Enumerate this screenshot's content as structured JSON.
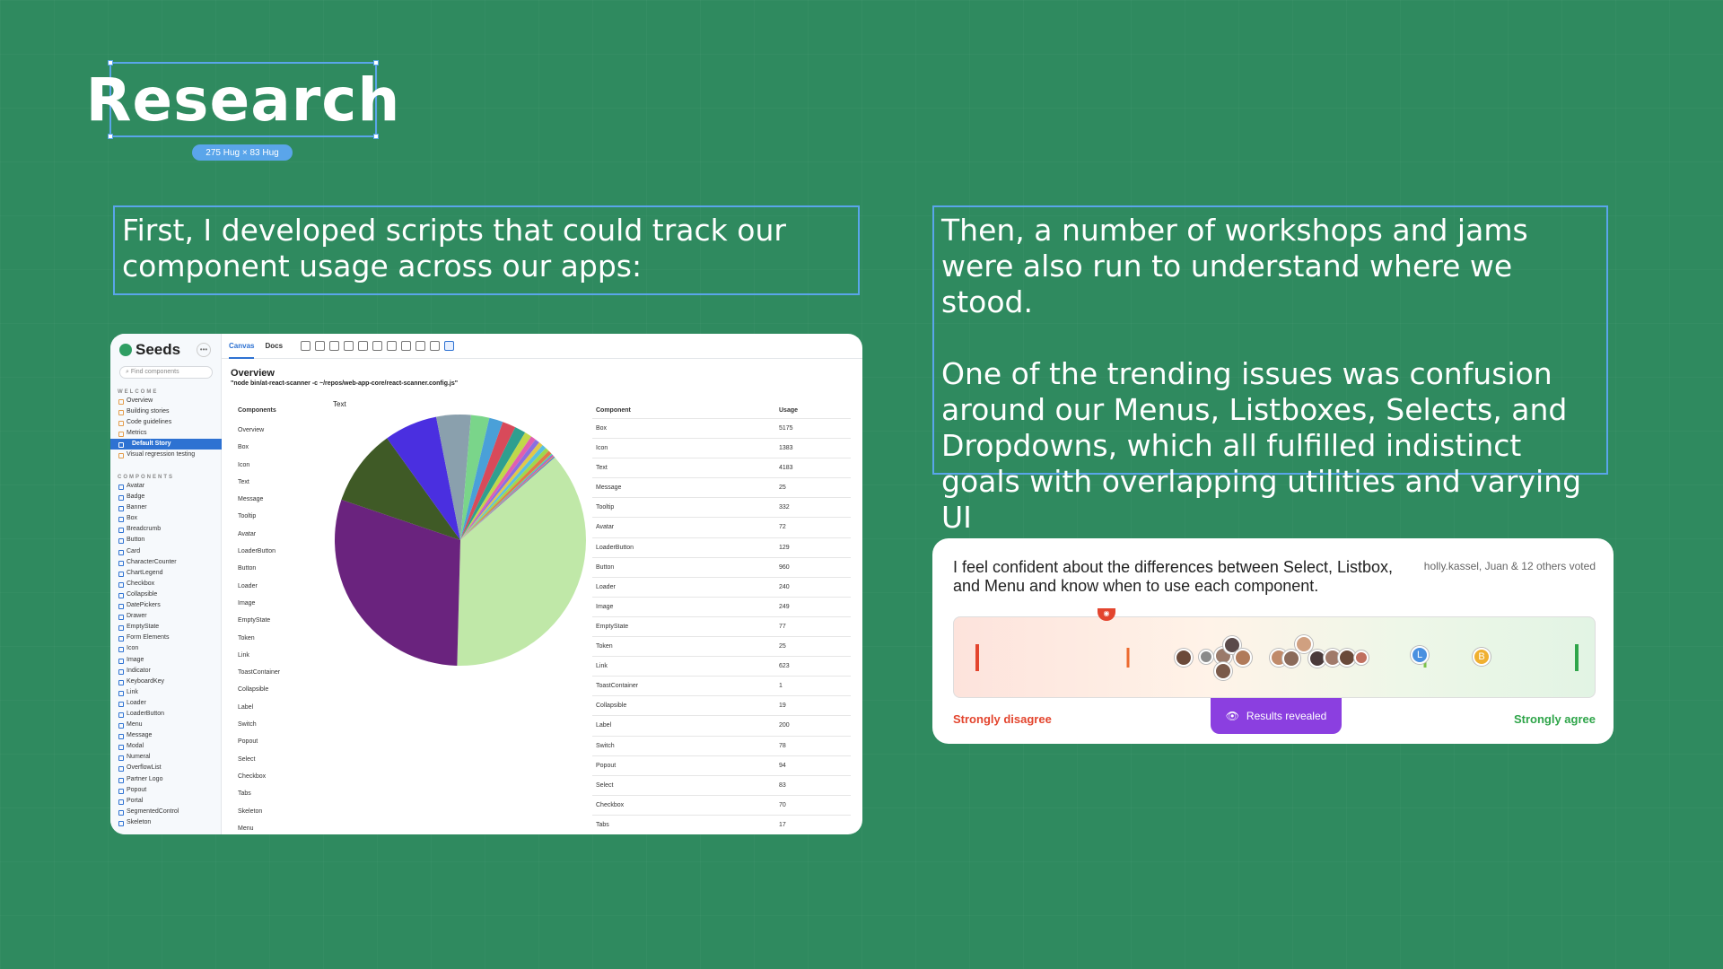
{
  "title": {
    "text": "Research",
    "size_badge": "275 Hug × 83 Hug"
  },
  "left_text": "First, I developed scripts that could track our component usage across our apps:",
  "right_text": {
    "p1": "Then, a number of workshops and jams were also run to understand where we stood.",
    "p2": "One of the trending issues was confusion around our Menus, Listboxes, Selects, and Dropdowns, which all fulfilled indistinct goals with overlapping utilities and varying UI"
  },
  "storybook": {
    "brand": "Seeds",
    "search_placeholder": "Find components",
    "welcome_section": "WELCOME",
    "welcome_items": [
      "Overview",
      "Building stories",
      "Code guidelines",
      "Metrics",
      "Default Story",
      "Visual regression testing"
    ],
    "components_section": "COMPONENTS",
    "component_items": [
      "Avatar",
      "Badge",
      "Banner",
      "Box",
      "Breadcrumb",
      "Button",
      "Card",
      "CharacterCounter",
      "ChartLegend",
      "Checkbox",
      "Collapsible",
      "DatePickers",
      "Drawer",
      "EmptyState",
      "Form Elements",
      "Icon",
      "Image",
      "Indicator",
      "KeyboardKey",
      "Link",
      "Loader",
      "LoaderButton",
      "Menu",
      "Message",
      "Modal",
      "Numeral",
      "OverflowList",
      "Partner Logo",
      "Popout",
      "Portal",
      "SegmentedControl",
      "Skeleton"
    ],
    "tabs": [
      "Canvas",
      "Docs"
    ],
    "overview_title": "Overview",
    "command": "\"node bin/at-react-scanner -c ~/repos/web-app-core/react-scanner.config.js\"",
    "components_header": "Components",
    "components_list": [
      "Overview",
      "Box",
      "Icon",
      "Text",
      "Message",
      "Tooltip",
      "Avatar",
      "LoaderButton",
      "Button",
      "Loader",
      "Image",
      "EmptyState",
      "Token",
      "Link",
      "ToastContainer",
      "Collapsible",
      "Label",
      "Switch",
      "Popout",
      "Select",
      "Checkbox",
      "Tabs",
      "Skeleton",
      "Menu"
    ],
    "pie_label": "Text",
    "table_headers": [
      "Component",
      "Usage"
    ],
    "table_rows": [
      [
        "Box",
        "5175"
      ],
      [
        "Icon",
        "1383"
      ],
      [
        "Text",
        "4183"
      ],
      [
        "Message",
        "25"
      ],
      [
        "Tooltip",
        "332"
      ],
      [
        "Avatar",
        "72"
      ],
      [
        "LoaderButton",
        "129"
      ],
      [
        "Button",
        "960"
      ],
      [
        "Loader",
        "240"
      ],
      [
        "Image",
        "249"
      ],
      [
        "EmptyState",
        "77"
      ],
      [
        "Token",
        "25"
      ],
      [
        "Link",
        "623"
      ],
      [
        "ToastContainer",
        "1"
      ],
      [
        "Collapsible",
        "19"
      ],
      [
        "Label",
        "200"
      ],
      [
        "Switch",
        "78"
      ],
      [
        "Popout",
        "94"
      ],
      [
        "Select",
        "83"
      ],
      [
        "Checkbox",
        "70"
      ],
      [
        "Tabs",
        "17"
      ]
    ]
  },
  "chart_data": {
    "type": "pie",
    "title": "Text",
    "slices": [
      {
        "label": "Box",
        "value": 5175,
        "color": "#c0e8a8"
      },
      {
        "label": "Text",
        "value": 4183,
        "color": "#6a237e"
      },
      {
        "label": "Icon",
        "value": 1383,
        "color": "#3f5a26"
      },
      {
        "label": "Button",
        "value": 960,
        "color": "#4a2fe0"
      },
      {
        "label": "Link",
        "value": 623,
        "color": "#8aa0ad"
      },
      {
        "label": "Tooltip",
        "value": 332,
        "color": "#7ad58a"
      },
      {
        "label": "Image",
        "value": 249,
        "color": "#4aa0d8"
      },
      {
        "label": "Loader",
        "value": 240,
        "color": "#d84a5a"
      },
      {
        "label": "Label",
        "value": 200,
        "color": "#2f9f8f"
      },
      {
        "label": "LoaderButton",
        "value": 129,
        "color": "#c0d84a"
      },
      {
        "label": "Popout",
        "value": 94,
        "color": "#e05fb0"
      },
      {
        "label": "Select",
        "value": 83,
        "color": "#8a6fe0"
      },
      {
        "label": "Switch",
        "value": 78,
        "color": "#e0c84a"
      },
      {
        "label": "EmptyState",
        "value": 77,
        "color": "#5ac0e0"
      },
      {
        "label": "Avatar",
        "value": 72,
        "color": "#a0d84a"
      },
      {
        "label": "Checkbox",
        "value": 70,
        "color": "#e07a4a"
      },
      {
        "label": "Message",
        "value": 25,
        "color": "#4ae0a0"
      },
      {
        "label": "Token",
        "value": 25,
        "color": "#b04ae0"
      },
      {
        "label": "Collapsible",
        "value": 19,
        "color": "#e0a04a"
      },
      {
        "label": "Tabs",
        "value": 17,
        "color": "#4a70e0"
      },
      {
        "label": "ToastContainer",
        "value": 1,
        "color": "#333333"
      }
    ]
  },
  "poll": {
    "question": "I feel confident about the differences between Select, Listbox, and Menu and know when to use each component.",
    "voters": "holly.kassel, Juan & 12 others voted",
    "disagree_label": "Strongly disagree",
    "agree_label": "Strongly agree",
    "results_button": "Results revealed",
    "avatar_letters": [
      "L",
      "B"
    ],
    "colors": {
      "disagree": "#e3452e",
      "agree": "#2fa54a",
      "button": "#8b3fe0"
    }
  }
}
